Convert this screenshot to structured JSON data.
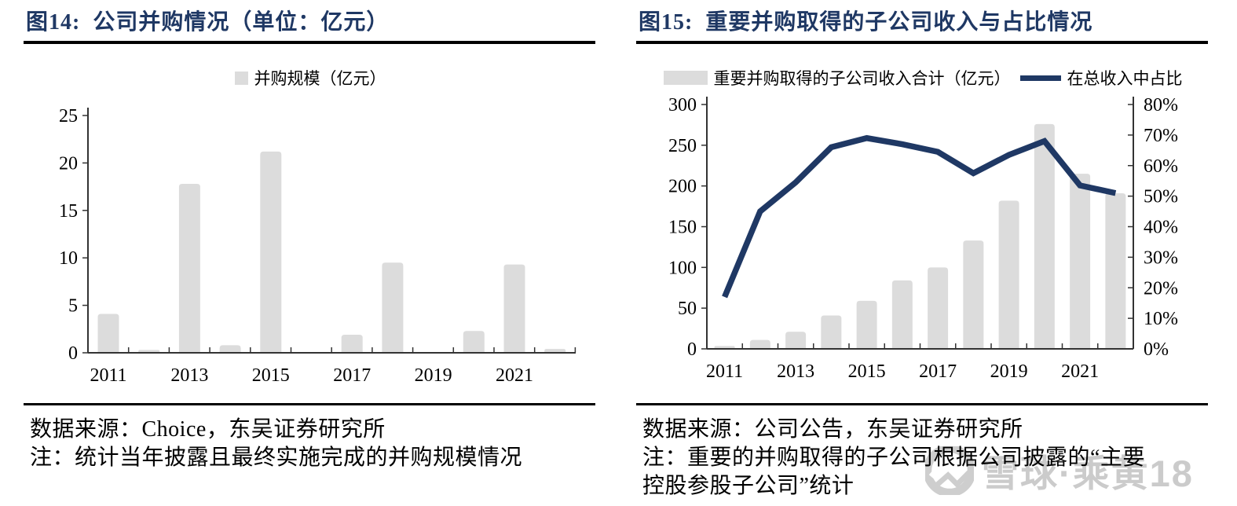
{
  "watermark": {
    "text": "雪球·乘黄18"
  },
  "left_panel": {
    "title": "图14:  公司并购情况（单位：亿元）",
    "source": "数据来源：Choice，东吴证券研究所",
    "note_line1": "注：统计当年披露且最终实施完成的并购规模情况"
  },
  "right_panel": {
    "title": "图15:  重要并购取得的子公司收入与占比情况",
    "source": "数据来源：公司公告，东吴证券研究所",
    "note_line1": "注：重要的并购取得的子公司根据公司披露的“主要",
    "note_line2": "控股参股子公司”统计"
  },
  "colors": {
    "title_navy": "#1F3864",
    "line_navy": "#1F3864",
    "bar_gray": "#DCDCDC",
    "axis": "#333333",
    "watermark_gray": "#c3c3c3"
  },
  "chart_data": [
    {
      "type": "bar",
      "title": "图14: 公司并购情况（单位：亿元）",
      "categories": [
        "2011",
        "2012",
        "2013",
        "2014",
        "2015",
        "2016",
        "2017",
        "2018",
        "2019",
        "2020",
        "2021",
        "2022"
      ],
      "xtick_labels": [
        "2011",
        "2013",
        "2015",
        "2017",
        "2019",
        "2021"
      ],
      "left_ylim": [
        0,
        25
      ],
      "left_ytick_step": 5,
      "grid": false,
      "legend_position": "top-center",
      "series": [
        {
          "name": "并购规模（亿元）",
          "type": "bar",
          "axis": "left",
          "color": "#DCDCDC",
          "values": [
            4.1,
            0.3,
            17.8,
            0.8,
            21.2,
            0,
            1.9,
            9.5,
            0,
            2.3,
            9.3,
            0.4
          ]
        }
      ]
    },
    {
      "type": "bar+line",
      "title": "图15: 重要并购取得的子公司收入与占比情况",
      "categories": [
        "2011",
        "2012",
        "2013",
        "2014",
        "2015",
        "2016",
        "2017",
        "2018",
        "2019",
        "2020",
        "2021",
        "2022"
      ],
      "xtick_labels": [
        "2011",
        "2013",
        "2015",
        "2017",
        "2019",
        "2021"
      ],
      "left_ylim": [
        0,
        300
      ],
      "left_ytick_step": 50,
      "right_ylim": [
        0,
        80
      ],
      "right_ytick_step": 10,
      "right_unit": "%",
      "grid": false,
      "legend_position": "top-center",
      "series": [
        {
          "name": "重要并购取得的子公司收入合计（亿元）",
          "type": "bar",
          "axis": "left",
          "color": "#DCDCDC",
          "values": [
            3.5,
            11,
            21,
            41,
            59,
            84,
            100,
            133,
            182,
            276,
            215,
            191
          ]
        },
        {
          "name": "在总收入中占比",
          "type": "line",
          "axis": "right",
          "unit": "%",
          "color": "#1F3864",
          "values": [
            17,
            45,
            54.5,
            66,
            69,
            67,
            64.5,
            57.5,
            63.5,
            68,
            53.5,
            51
          ]
        }
      ]
    }
  ]
}
